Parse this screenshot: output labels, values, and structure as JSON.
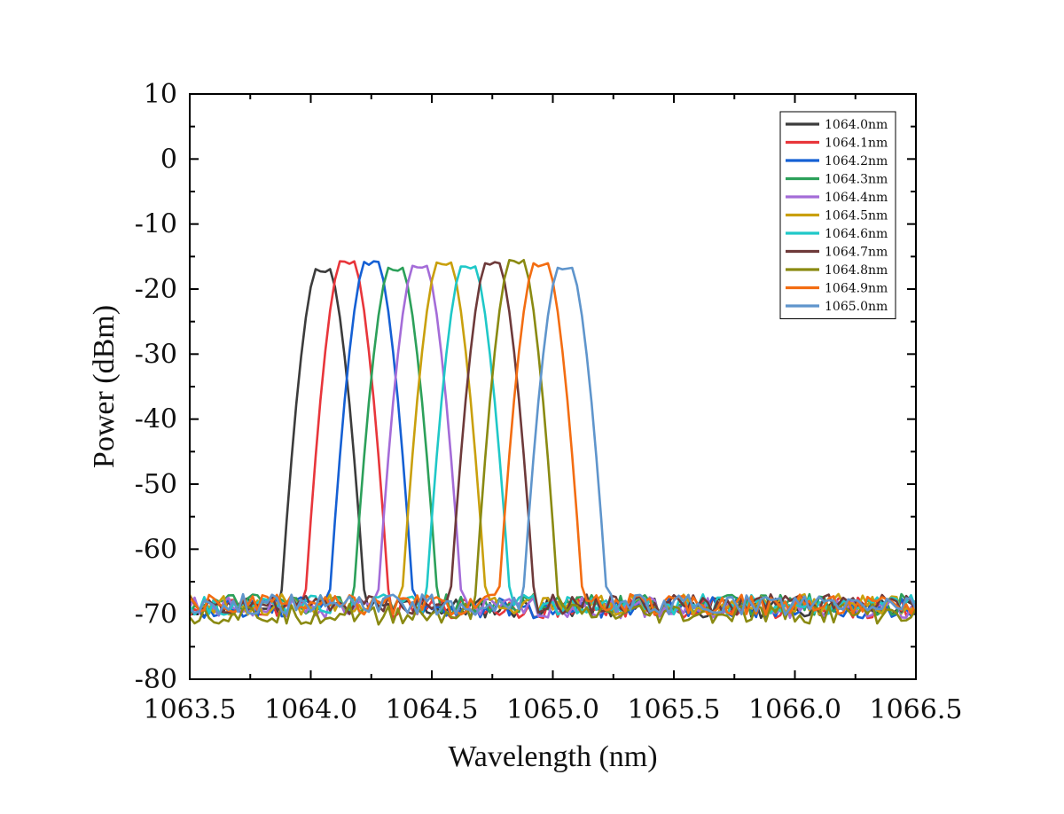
{
  "chart_data": {
    "type": "line",
    "title": "",
    "xlabel": "Wavelength (nm)",
    "ylabel": "Power (dBm)",
    "xlim": [
      1063.5,
      1066.5
    ],
    "ylim": [
      -80,
      10
    ],
    "xticks": [
      {
        "value": 1063.5,
        "label": "1063.5"
      },
      {
        "value": 1064.0,
        "label": "1064.0"
      },
      {
        "value": 1064.5,
        "label": "1064.5"
      },
      {
        "value": 1065.0,
        "label": "1065.0"
      },
      {
        "value": 1065.5,
        "label": "1065.5"
      },
      {
        "value": 1066.0,
        "label": "1066.0"
      },
      {
        "value": 1066.5,
        "label": "1066.5"
      }
    ],
    "yticks": [
      {
        "value": 10,
        "label": "10"
      },
      {
        "value": 0,
        "label": "0"
      },
      {
        "value": -10,
        "label": "-10"
      },
      {
        "value": -20,
        "label": "-20"
      },
      {
        "value": -30,
        "label": "-30"
      },
      {
        "value": -40,
        "label": "-40"
      },
      {
        "value": -50,
        "label": "-50"
      },
      {
        "value": -60,
        "label": "-60"
      },
      {
        "value": -70,
        "label": "-70"
      },
      {
        "value": -80,
        "label": "-80"
      }
    ],
    "grid": false,
    "legend_position": "top-right",
    "series": [
      {
        "name": "1064.0nm",
        "color": "#3c3c3c",
        "peak_wavelength": 1064.05,
        "peak_power": -16.7,
        "noise_floor": -69
      },
      {
        "name": "1064.1nm",
        "color": "#e8363b",
        "peak_wavelength": 1064.15,
        "peak_power": -15.5,
        "noise_floor": -69
      },
      {
        "name": "1064.2nm",
        "color": "#1560d4",
        "peak_wavelength": 1064.25,
        "peak_power": -15.6,
        "noise_floor": -69
      },
      {
        "name": "1064.3nm",
        "color": "#2ca05a",
        "peak_wavelength": 1064.35,
        "peak_power": -16.5,
        "noise_floor": -68.5
      },
      {
        "name": "1064.4nm",
        "color": "#a46cd8",
        "peak_wavelength": 1064.45,
        "peak_power": -16.2,
        "noise_floor": -69
      },
      {
        "name": "1064.5nm",
        "color": "#c9a00d",
        "peak_wavelength": 1064.55,
        "peak_power": -15.7,
        "noise_floor": -68.5
      },
      {
        "name": "1064.6nm",
        "color": "#1fc8c8",
        "peak_wavelength": 1064.65,
        "peak_power": -16.3,
        "noise_floor": -68.5
      },
      {
        "name": "1064.7nm",
        "color": "#6e3a3a",
        "peak_wavelength": 1064.75,
        "peak_power": -15.8,
        "noise_floor": -68.5
      },
      {
        "name": "1064.8nm",
        "color": "#8a8a12",
        "peak_wavelength": 1064.85,
        "peak_power": -15.3,
        "noise_floor": -70
      },
      {
        "name": "1064.9nm",
        "color": "#f36d12",
        "peak_wavelength": 1064.95,
        "peak_power": -15.8,
        "noise_floor": -68.5
      },
      {
        "name": "1065.0nm",
        "color": "#5f95cc",
        "peak_wavelength": 1065.05,
        "peak_power": -16.5,
        "noise_floor": -68.5
      }
    ]
  }
}
